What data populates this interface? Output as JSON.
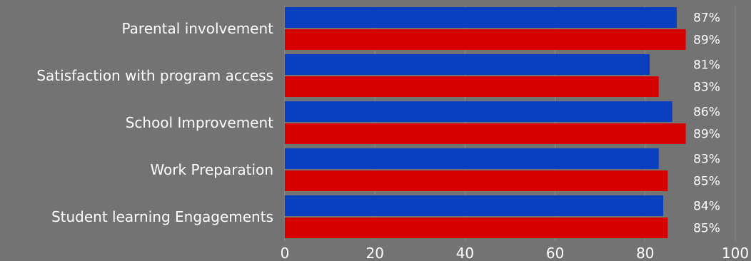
{
  "chart_data": {
    "type": "bar",
    "orientation": "horizontal",
    "categories": [
      "Parental involvement",
      "Satisfaction with program access",
      "School Improvement",
      "Work Preparation",
      "Student learning Engagements"
    ],
    "series": [
      {
        "color": "#0a3fbf",
        "values": [
          87,
          81,
          86,
          83,
          84
        ]
      },
      {
        "color": "#d60000",
        "values": [
          89,
          83,
          89,
          85,
          85
        ]
      }
    ],
    "value_labels": [
      [
        "87%",
        "81%",
        "86%",
        "83%",
        "84%"
      ],
      [
        "89%",
        "83%",
        "89%",
        "85%",
        "85%"
      ]
    ],
    "xlim": [
      0,
      100
    ],
    "x_ticks": [
      "0",
      "20",
      "40",
      "60",
      "80",
      "100"
    ],
    "grid": true,
    "title": "",
    "xlabel": "",
    "ylabel": "",
    "background": "#737373"
  }
}
